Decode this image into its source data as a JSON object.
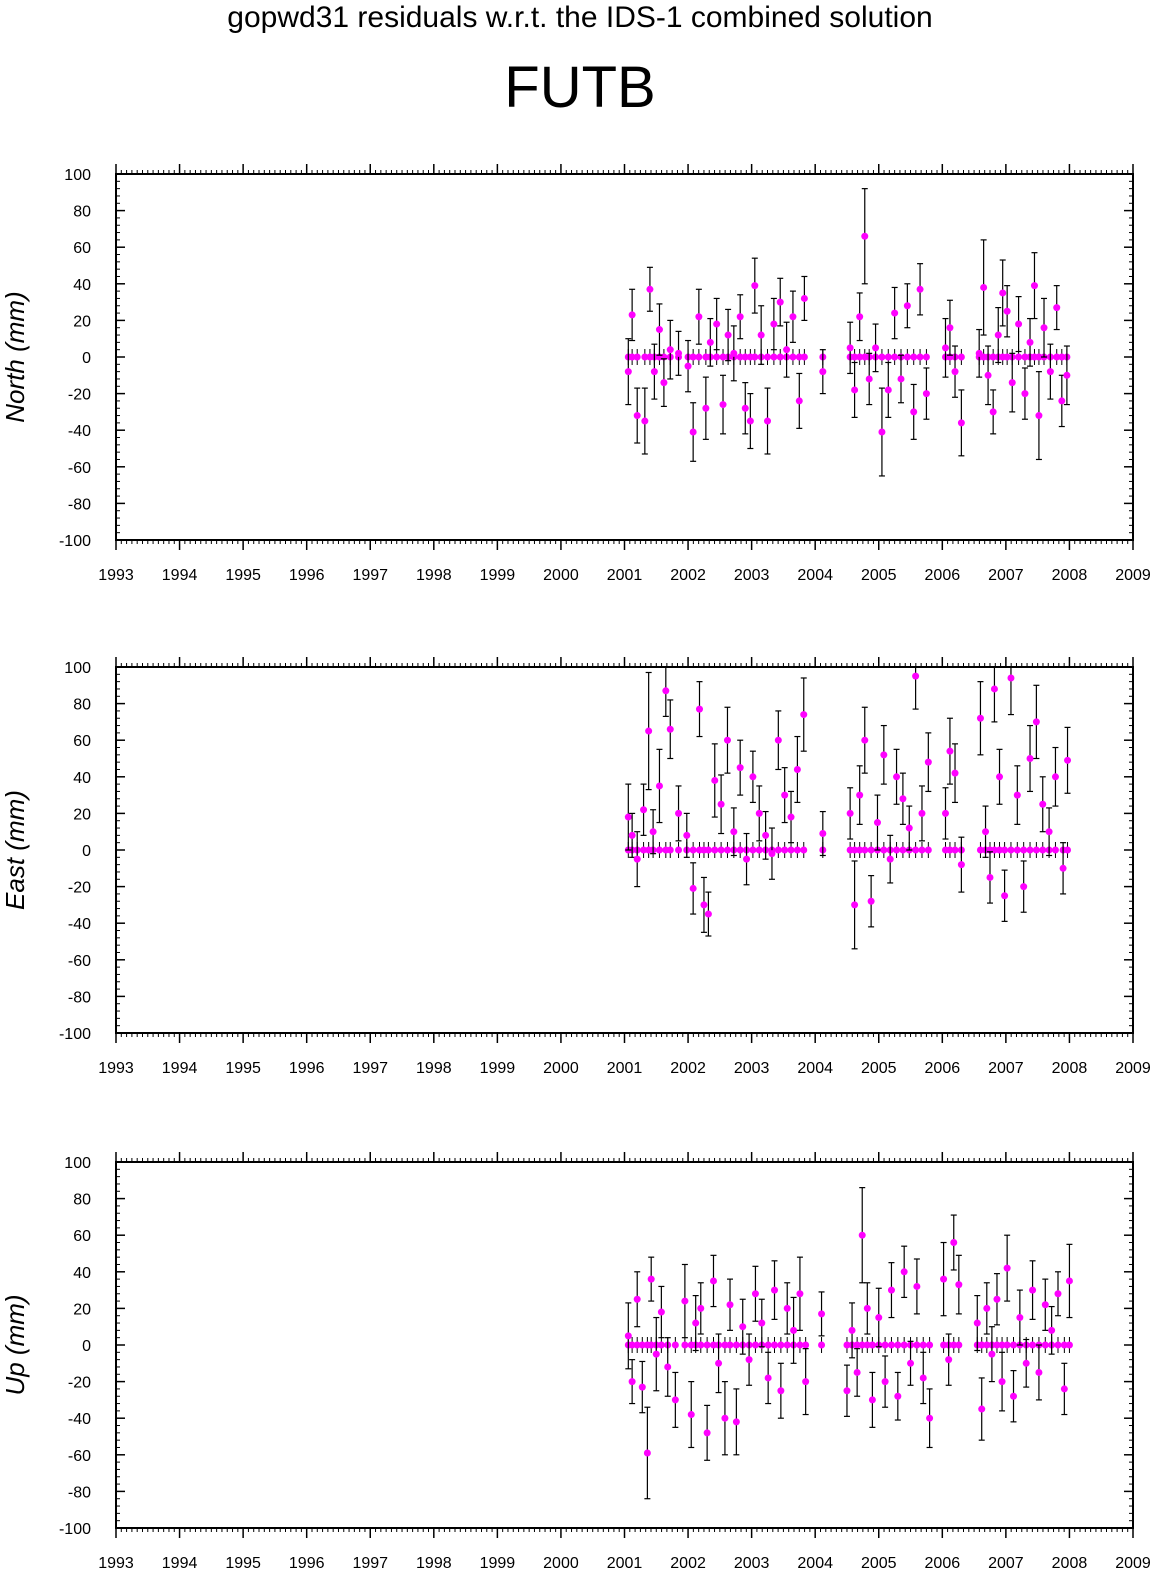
{
  "page": {
    "subtitle": "gopwd31 residuals w.r.t. the IDS-1 combined solution",
    "title": "FUTB"
  },
  "colors": {
    "points": "#ff00ff",
    "errorbars": "#000000",
    "axes": "#000000"
  },
  "chart_data": [
    {
      "type": "scatter",
      "component": "north",
      "ylabel": "North (mm)",
      "xlim": [
        1993,
        2009
      ],
      "ylim": [
        -100,
        100
      ],
      "xticks": [
        "1993",
        "1994",
        "1995",
        "1996",
        "1997",
        "1998",
        "1999",
        "2000",
        "2001",
        "2002",
        "2003",
        "2004",
        "2005",
        "2006",
        "2007",
        "2008",
        "2009"
      ],
      "yticks": [
        "-100",
        "-80",
        "-60",
        "-40",
        "-20",
        "0",
        "20",
        "40",
        "60",
        "80",
        "100"
      ],
      "grid": false,
      "series": [
        {
          "x": [
            2001.06,
            2001.12,
            2001.2,
            2001.32,
            2001.4,
            2001.47,
            2001.55,
            2001.62,
            2001.72,
            2001.85,
            2002.0,
            2002.08,
            2002.17,
            2002.28,
            2002.35,
            2002.45,
            2002.55,
            2002.63,
            2002.72,
            2002.82,
            2002.9,
            2002.98,
            2003.05,
            2003.15,
            2003.25,
            2003.35,
            2003.45,
            2003.55,
            2003.65,
            2003.75,
            2003.83,
            2004.12,
            2004.55,
            2004.62,
            2004.7,
            2004.78,
            2004.85,
            2004.95,
            2005.05,
            2005.15,
            2005.25,
            2005.35,
            2005.45,
            2005.55,
            2005.65,
            2005.75,
            2006.05,
            2006.12,
            2006.2,
            2006.3,
            2006.58,
            2006.65,
            2006.72,
            2006.8,
            2006.88,
            2006.95,
            2007.02,
            2007.1,
            2007.2,
            2007.3,
            2007.38,
            2007.45,
            2007.52,
            2007.6,
            2007.7,
            2007.8,
            2007.88,
            2007.96
          ],
          "y": [
            -8,
            23,
            -32,
            -35,
            37,
            -8,
            15,
            -14,
            4,
            2,
            -5,
            -41,
            22,
            -28,
            8,
            18,
            -26,
            12,
            2,
            22,
            -28,
            -35,
            39,
            12,
            -35,
            18,
            30,
            4,
            22,
            -24,
            32,
            -8,
            5,
            -18,
            22,
            66,
            -12,
            5,
            -41,
            -18,
            24,
            -12,
            28,
            -30,
            37,
            -20,
            5,
            16,
            -8,
            -36,
            2,
            38,
            -10,
            -30,
            12,
            35,
            25,
            -14,
            18,
            -20,
            8,
            39,
            -32,
            16,
            -8,
            27,
            -24,
            -10
          ],
          "err": [
            18,
            14,
            15,
            18,
            12,
            15,
            14,
            13,
            16,
            12,
            14,
            16,
            15,
            17,
            13,
            14,
            16,
            14,
            15,
            12,
            14,
            15,
            15,
            16,
            18,
            14,
            13,
            15,
            14,
            15,
            12,
            12,
            14,
            15,
            13,
            26,
            14,
            13,
            24,
            15,
            14,
            13,
            12,
            15,
            14,
            14,
            16,
            15,
            14,
            18,
            13,
            26,
            16,
            12,
            15,
            18,
            14,
            16,
            15,
            14,
            13,
            18,
            24,
            16,
            15,
            12,
            14,
            16
          ]
        }
      ]
    },
    {
      "type": "scatter",
      "component": "east",
      "ylabel": "East (mm)",
      "xlim": [
        1993,
        2009
      ],
      "ylim": [
        -100,
        100
      ],
      "xticks": [
        "1993",
        "1994",
        "1995",
        "1996",
        "1997",
        "1998",
        "1999",
        "2000",
        "2001",
        "2002",
        "2003",
        "2004",
        "2005",
        "2006",
        "2007",
        "2008",
        "2009"
      ],
      "yticks": [
        "-100",
        "-80",
        "-60",
        "-40",
        "-20",
        "0",
        "20",
        "40",
        "60",
        "80",
        "100"
      ],
      "grid": false,
      "series": [
        {
          "x": [
            2001.06,
            2001.12,
            2001.2,
            2001.3,
            2001.38,
            2001.45,
            2001.55,
            2001.65,
            2001.72,
            2001.85,
            2001.98,
            2002.08,
            2002.18,
            2002.25,
            2002.32,
            2002.42,
            2002.52,
            2002.62,
            2002.72,
            2002.82,
            2002.92,
            2003.02,
            2003.12,
            2003.22,
            2003.32,
            2003.42,
            2003.52,
            2003.62,
            2003.72,
            2003.82,
            2004.12,
            2004.55,
            2004.62,
            2004.7,
            2004.78,
            2004.88,
            2004.98,
            2005.08,
            2005.18,
            2005.28,
            2005.38,
            2005.48,
            2005.58,
            2005.68,
            2005.78,
            2006.05,
            2006.12,
            2006.2,
            2006.3,
            2006.6,
            2006.68,
            2006.75,
            2006.82,
            2006.9,
            2006.98,
            2007.08,
            2007.18,
            2007.28,
            2007.38,
            2007.48,
            2007.58,
            2007.68,
            2007.78,
            2007.9,
            2007.97
          ],
          "y": [
            18,
            8,
            -5,
            22,
            65,
            10,
            35,
            87,
            66,
            20,
            8,
            -21,
            77,
            -30,
            -35,
            38,
            25,
            60,
            10,
            45,
            -5,
            40,
            20,
            8,
            -2,
            60,
            30,
            18,
            44,
            74,
            9,
            20,
            -30,
            30,
            60,
            -28,
            15,
            52,
            -5,
            40,
            28,
            12,
            95,
            20,
            48,
            20,
            54,
            42,
            -8,
            72,
            10,
            -15,
            88,
            40,
            -25,
            94,
            30,
            -20,
            50,
            70,
            25,
            10,
            40,
            -10,
            49
          ],
          "err": [
            18,
            12,
            15,
            14,
            32,
            12,
            20,
            14,
            16,
            15,
            12,
            14,
            15,
            15,
            12,
            20,
            16,
            18,
            13,
            15,
            14,
            14,
            15,
            13,
            14,
            16,
            15,
            14,
            18,
            20,
            12,
            14,
            24,
            16,
            18,
            14,
            15,
            16,
            13,
            15,
            14,
            12,
            18,
            15,
            16,
            14,
            18,
            16,
            15,
            20,
            14,
            14,
            18,
            15,
            14,
            20,
            16,
            14,
            18,
            20,
            15,
            13,
            16,
            14,
            18
          ]
        }
      ]
    },
    {
      "type": "scatter",
      "component": "up",
      "ylabel": "Up (mm)",
      "xlim": [
        1993,
        2009
      ],
      "ylim": [
        -100,
        100
      ],
      "xticks": [
        "1993",
        "1994",
        "1995",
        "1996",
        "1997",
        "1998",
        "1999",
        "2000",
        "2001",
        "2002",
        "2003",
        "2004",
        "2005",
        "2006",
        "2007",
        "2008",
        "2009"
      ],
      "yticks": [
        "-100",
        "-80",
        "-60",
        "-40",
        "-20",
        "0",
        "20",
        "40",
        "60",
        "80",
        "100"
      ],
      "grid": false,
      "series": [
        {
          "x": [
            2001.06,
            2001.12,
            2001.2,
            2001.28,
            2001.36,
            2001.42,
            2001.5,
            2001.58,
            2001.68,
            2001.8,
            2001.95,
            2002.05,
            2002.12,
            2002.2,
            2002.3,
            2002.4,
            2002.48,
            2002.58,
            2002.66,
            2002.76,
            2002.86,
            2002.96,
            2003.06,
            2003.16,
            2003.26,
            2003.36,
            2003.46,
            2003.56,
            2003.66,
            2003.76,
            2003.85,
            2004.1,
            2004.5,
            2004.58,
            2004.66,
            2004.74,
            2004.82,
            2004.9,
            2005.0,
            2005.1,
            2005.2,
            2005.3,
            2005.4,
            2005.5,
            2005.6,
            2005.7,
            2005.8,
            2006.02,
            2006.1,
            2006.18,
            2006.26,
            2006.55,
            2006.62,
            2006.7,
            2006.78,
            2006.86,
            2006.94,
            2007.02,
            2007.12,
            2007.22,
            2007.32,
            2007.42,
            2007.52,
            2007.62,
            2007.72,
            2007.82,
            2007.92,
            2008.0
          ],
          "y": [
            5,
            -20,
            25,
            -23,
            -59,
            36,
            -5,
            18,
            -12,
            -30,
            24,
            -38,
            12,
            20,
            -48,
            35,
            -10,
            -40,
            22,
            -42,
            10,
            -8,
            28,
            12,
            -18,
            30,
            -25,
            20,
            8,
            28,
            -20,
            17,
            -25,
            8,
            -15,
            60,
            20,
            -30,
            15,
            -20,
            30,
            -28,
            40,
            -10,
            32,
            -18,
            -40,
            36,
            -8,
            56,
            33,
            12,
            -35,
            20,
            -5,
            25,
            -20,
            42,
            -28,
            15,
            -10,
            30,
            -15,
            22,
            8,
            28,
            -24,
            35
          ],
          "err": [
            18,
            12,
            15,
            14,
            25,
            12,
            20,
            14,
            16,
            15,
            20,
            18,
            15,
            14,
            15,
            14,
            16,
            20,
            14,
            18,
            15,
            14,
            15,
            13,
            14,
            16,
            15,
            14,
            18,
            20,
            18,
            12,
            14,
            15,
            13,
            26,
            14,
            15,
            16,
            14,
            15,
            13,
            14,
            12,
            15,
            14,
            16,
            20,
            14,
            15,
            16,
            15,
            17,
            14,
            15,
            14,
            16,
            18,
            14,
            15,
            13,
            16,
            15,
            14,
            13,
            12,
            14,
            20
          ]
        }
      ]
    }
  ]
}
